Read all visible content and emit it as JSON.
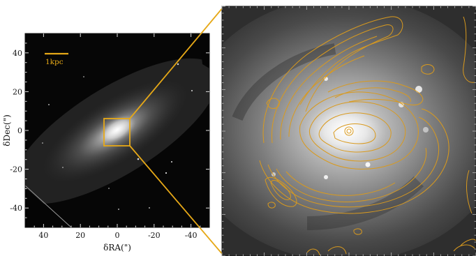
{
  "colors": {
    "accent": "#e6a817",
    "contour": "#d99a1e",
    "frame": "#111111",
    "background": "#ffffff"
  },
  "left_panel": {
    "xlabel": "δRA(\")",
    "ylabel": "δDec(\")",
    "x_ticks": [
      "40",
      "20",
      "0",
      "-20",
      "-40"
    ],
    "y_ticks": [
      "40",
      "20",
      "0",
      "-20",
      "-40"
    ],
    "x_range": [
      50,
      -50
    ],
    "y_range": [
      -50,
      50
    ],
    "scale_bar_label": "1kpc"
  },
  "right_panel": {
    "description_icon": "contour-overlay"
  }
}
